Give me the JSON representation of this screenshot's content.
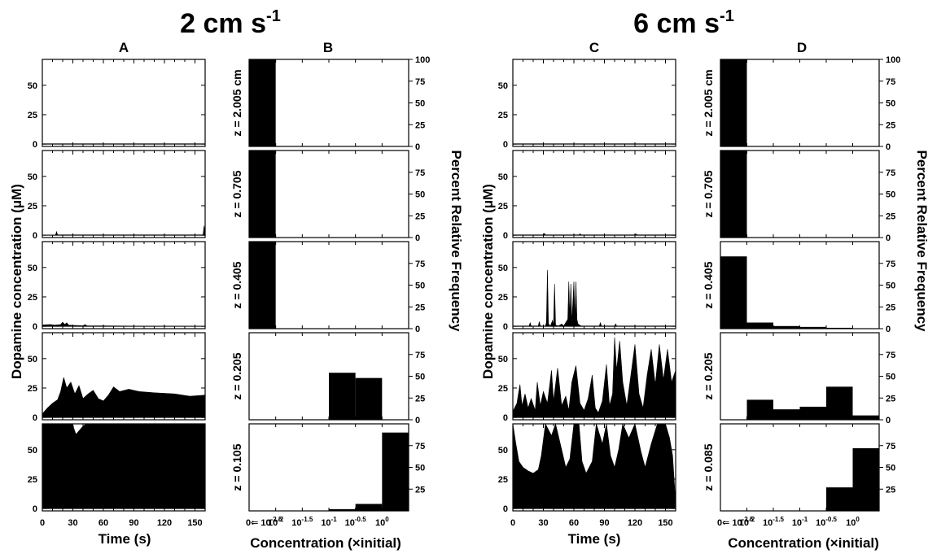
{
  "headings": {
    "left": {
      "text": "2 cm s",
      "exponent": "-1"
    },
    "right": {
      "text": "6 cm s",
      "exponent": "-1"
    }
  },
  "panel_letters": [
    "A",
    "B",
    "C",
    "D"
  ],
  "axis_titles": {
    "time_y": "Dopamine concentration (μM)",
    "time_x": "Time (s)",
    "hist_x": "Concentration (×initial)",
    "hist_y": "Percent Relative Frequency"
  },
  "ticks": {
    "time_x": [
      "0",
      "30",
      "60",
      "90",
      "120",
      "150"
    ],
    "time_y": [
      "0",
      "25",
      "50"
    ],
    "hist_y_top": [
      "0",
      "25",
      "50",
      "75",
      "100"
    ],
    "hist_y": [
      "0",
      "25",
      "50",
      "75"
    ],
    "hist_y_bottom": [
      "25",
      "50",
      "75"
    ],
    "hist_x": [
      {
        "base": "0⇐ 10",
        "exp": "-2.5"
      },
      {
        "base": "10",
        "exp": "-2"
      },
      {
        "base": "10",
        "exp": "-1.5"
      },
      {
        "base": "10",
        "exp": "-1"
      },
      {
        "base": "10",
        "exp": "-0.5"
      },
      {
        "base": "10",
        "exp": "0"
      }
    ]
  },
  "chart_data": [
    {
      "id": "A",
      "type": "area",
      "title": "2 cm s-1",
      "xlabel": "Time (s)",
      "ylabel": "Dopamine concentration (μM)",
      "xlim": [
        0,
        160
      ],
      "ylim": [
        -2,
        72
      ],
      "panels": [
        {
          "depth": "z = 2.005 cm",
          "points": [
            [
              0,
              0.3
            ],
            [
              160,
              0.3
            ]
          ]
        },
        {
          "depth": "z = 0.705",
          "points": [
            [
              0,
              0.2
            ],
            [
              13,
              0.3
            ],
            [
              14,
              3
            ],
            [
              15,
              0.3
            ],
            [
              158,
              0.3
            ],
            [
              159,
              8
            ],
            [
              160,
              0.3
            ]
          ]
        },
        {
          "depth": "z = 0.405",
          "points": [
            [
              0,
              1.2
            ],
            [
              8,
              1.5
            ],
            [
              12,
              1
            ],
            [
              18,
              1.5
            ],
            [
              20,
              3.5
            ],
            [
              22,
              1.5
            ],
            [
              24,
              3
            ],
            [
              26,
              1
            ],
            [
              30,
              0.8
            ],
            [
              40,
              0.5
            ],
            [
              42,
              1.5
            ],
            [
              44,
              0.4
            ],
            [
              60,
              0.4
            ],
            [
              90,
              0.2
            ],
            [
              160,
              0.1
            ]
          ]
        },
        {
          "depth": "z = 0.205",
          "points": [
            [
              0,
              3
            ],
            [
              5,
              8
            ],
            [
              10,
              12
            ],
            [
              15,
              15
            ],
            [
              18,
              22
            ],
            [
              21,
              34
            ],
            [
              24,
              25
            ],
            [
              28,
              30
            ],
            [
              32,
              20
            ],
            [
              36,
              27
            ],
            [
              40,
              16
            ],
            [
              45,
              20
            ],
            [
              50,
              23
            ],
            [
              55,
              16
            ],
            [
              60,
              14
            ],
            [
              65,
              19
            ],
            [
              70,
              26
            ],
            [
              76,
              22
            ],
            [
              85,
              24
            ],
            [
              95,
              22
            ],
            [
              110,
              21
            ],
            [
              130,
              20
            ],
            [
              145,
              18
            ],
            [
              160,
              19
            ]
          ]
        },
        {
          "depth": "z = 0.105",
          "points": [
            [
              0,
              72
            ],
            [
              30,
              72
            ],
            [
              31,
              68
            ],
            [
              33,
              63
            ],
            [
              36,
              66
            ],
            [
              40,
              70
            ],
            [
              43,
              72
            ],
            [
              160,
              72
            ]
          ]
        }
      ]
    },
    {
      "id": "B",
      "type": "bar",
      "title": "2 cm s-1",
      "xlabel": "Concentration (×initial)",
      "ylabel": "Percent Relative Frequency",
      "categories": [
        "0–10^-2.5",
        "10^-2.5–10^-2",
        "10^-2–10^-1.5",
        "10^-1.5–10^-1",
        "10^-1–10^-0.5",
        "10^-0.5–10^0"
      ],
      "panels": [
        {
          "depth": "z = 2.005 cm",
          "values": [
            100,
            0,
            0,
            0,
            0,
            0
          ]
        },
        {
          "depth": "z = 0.705",
          "values": [
            100,
            0,
            0,
            0,
            0,
            0
          ]
        },
        {
          "depth": "z = 0.405",
          "values": [
            100,
            0,
            0,
            0,
            0,
            0
          ]
        },
        {
          "depth": "z = 0.205",
          "values": [
            0,
            0,
            0,
            54,
            48,
            0
          ]
        },
        {
          "depth": "z = 0.105",
          "values": [
            0,
            0,
            0,
            2,
            8,
            90
          ]
        }
      ]
    },
    {
      "id": "C",
      "type": "area",
      "title": "6 cm s-1",
      "xlabel": "Time (s)",
      "ylabel": "Dopamine concentration (μM)",
      "xlim": [
        0,
        160
      ],
      "ylim": [
        -2,
        72
      ],
      "panels": [
        {
          "depth": "z = 2.005 cm",
          "points": [
            [
              0,
              0.3
            ],
            [
              160,
              0.3
            ]
          ]
        },
        {
          "depth": "z = 0.705",
          "points": [
            [
              0,
              0.3
            ],
            [
              30,
              0.3
            ],
            [
              31,
              1.5
            ],
            [
              32,
              0.3
            ],
            [
              65,
              0.3
            ],
            [
              66,
              1.2
            ],
            [
              67,
              0.3
            ],
            [
              120,
              0.3
            ],
            [
              121,
              1
            ],
            [
              122,
              0.3
            ],
            [
              160,
              0.3
            ]
          ]
        },
        {
          "depth": "z = 0.405",
          "points": [
            [
              0,
              0.3
            ],
            [
              16,
              0.3
            ],
            [
              17,
              3
            ],
            [
              18,
              0.3
            ],
            [
              25,
              0.3
            ],
            [
              26,
              4
            ],
            [
              27,
              0.3
            ],
            [
              32,
              0.3
            ],
            [
              33,
              3
            ],
            [
              34,
              48
            ],
            [
              35,
              2
            ],
            [
              37,
              0.3
            ],
            [
              39,
              5
            ],
            [
              40,
              0.5
            ],
            [
              41,
              36
            ],
            [
              42,
              1
            ],
            [
              45,
              0.3
            ],
            [
              48,
              2
            ],
            [
              50,
              0.3
            ],
            [
              54,
              6
            ],
            [
              55,
              38
            ],
            [
              56,
              7
            ],
            [
              57,
              36
            ],
            [
              58,
              3
            ],
            [
              60,
              38
            ],
            [
              61,
              6
            ],
            [
              62,
              38
            ],
            [
              63,
              6
            ],
            [
              64,
              2
            ],
            [
              67,
              0.3
            ],
            [
              85,
              0.3
            ],
            [
              86,
              3
            ],
            [
              87,
              0.3
            ],
            [
              100,
              0.3
            ],
            [
              101,
              2
            ],
            [
              102,
              0.3
            ],
            [
              160,
              0.3
            ]
          ]
        },
        {
          "depth": "z = 0.205",
          "points": [
            [
              0,
              5
            ],
            [
              4,
              12
            ],
            [
              7,
              28
            ],
            [
              9,
              10
            ],
            [
              12,
              20
            ],
            [
              15,
              8
            ],
            [
              18,
              16
            ],
            [
              22,
              6
            ],
            [
              24,
              30
            ],
            [
              27,
              10
            ],
            [
              30,
              22
            ],
            [
              34,
              12
            ],
            [
              38,
              40
            ],
            [
              40,
              14
            ],
            [
              44,
              42
            ],
            [
              48,
              10
            ],
            [
              52,
              18
            ],
            [
              55,
              6
            ],
            [
              58,
              30
            ],
            [
              62,
              44
            ],
            [
              66,
              12
            ],
            [
              70,
              6
            ],
            [
              74,
              16
            ],
            [
              78,
              36
            ],
            [
              81,
              8
            ],
            [
              84,
              4
            ],
            [
              88,
              14
            ],
            [
              92,
              45
            ],
            [
              95,
              10
            ],
            [
              98,
              20
            ],
            [
              100,
              68
            ],
            [
              102,
              40
            ],
            [
              105,
              65
            ],
            [
              108,
              30
            ],
            [
              112,
              10
            ],
            [
              116,
              36
            ],
            [
              120,
              62
            ],
            [
              124,
              20
            ],
            [
              128,
              8
            ],
            [
              132,
              36
            ],
            [
              136,
              58
            ],
            [
              140,
              28
            ],
            [
              144,
              62
            ],
            [
              148,
              32
            ],
            [
              152,
              58
            ],
            [
              156,
              30
            ],
            [
              160,
              40
            ]
          ]
        },
        {
          "depth": "z = 0.085",
          "points": [
            [
              0,
              72
            ],
            [
              3,
              55
            ],
            [
              6,
              40
            ],
            [
              10,
              35
            ],
            [
              15,
              32
            ],
            [
              20,
              30
            ],
            [
              25,
              33
            ],
            [
              28,
              45
            ],
            [
              32,
              72
            ],
            [
              38,
              62
            ],
            [
              42,
              72
            ],
            [
              48,
              50
            ],
            [
              52,
              35
            ],
            [
              56,
              42
            ],
            [
              60,
              72
            ],
            [
              65,
              72
            ],
            [
              68,
              40
            ],
            [
              72,
              30
            ],
            [
              78,
              40
            ],
            [
              82,
              72
            ],
            [
              88,
              55
            ],
            [
              92,
              72
            ],
            [
              96,
              45
            ],
            [
              100,
              35
            ],
            [
              104,
              50
            ],
            [
              108,
              72
            ],
            [
              114,
              60
            ],
            [
              120,
              72
            ],
            [
              126,
              48
            ],
            [
              130,
              35
            ],
            [
              136,
              55
            ],
            [
              142,
              72
            ],
            [
              150,
              72
            ],
            [
              154,
              60
            ],
            [
              157,
              45
            ],
            [
              160,
              5
            ]
          ]
        }
      ]
    },
    {
      "id": "D",
      "type": "bar",
      "title": "6 cm s-1",
      "xlabel": "Concentration (×initial)",
      "ylabel": "Percent Relative Frequency",
      "categories": [
        "0–10^-2.5",
        "10^-2.5–10^-2",
        "10^-2–10^-1.5",
        "10^-1.5–10^-1",
        "10^-1–10^-0.5",
        "10^-0.5–10^0"
      ],
      "panels": [
        {
          "depth": "z = 2.005 cm",
          "values": [
            100,
            0,
            0,
            0,
            0,
            0
          ]
        },
        {
          "depth": "z = 0.705",
          "values": [
            100,
            0,
            0,
            0,
            0,
            0
          ]
        },
        {
          "depth": "z = 0.405",
          "values": [
            83,
            7,
            3,
            2,
            1,
            0
          ]
        },
        {
          "depth": "z = 0.205",
          "values": [
            0,
            23,
            12,
            15,
            38,
            5
          ]
        },
        {
          "depth": "z = 0.085",
          "values": [
            0,
            0,
            0,
            0,
            27,
            72
          ]
        }
      ]
    }
  ]
}
